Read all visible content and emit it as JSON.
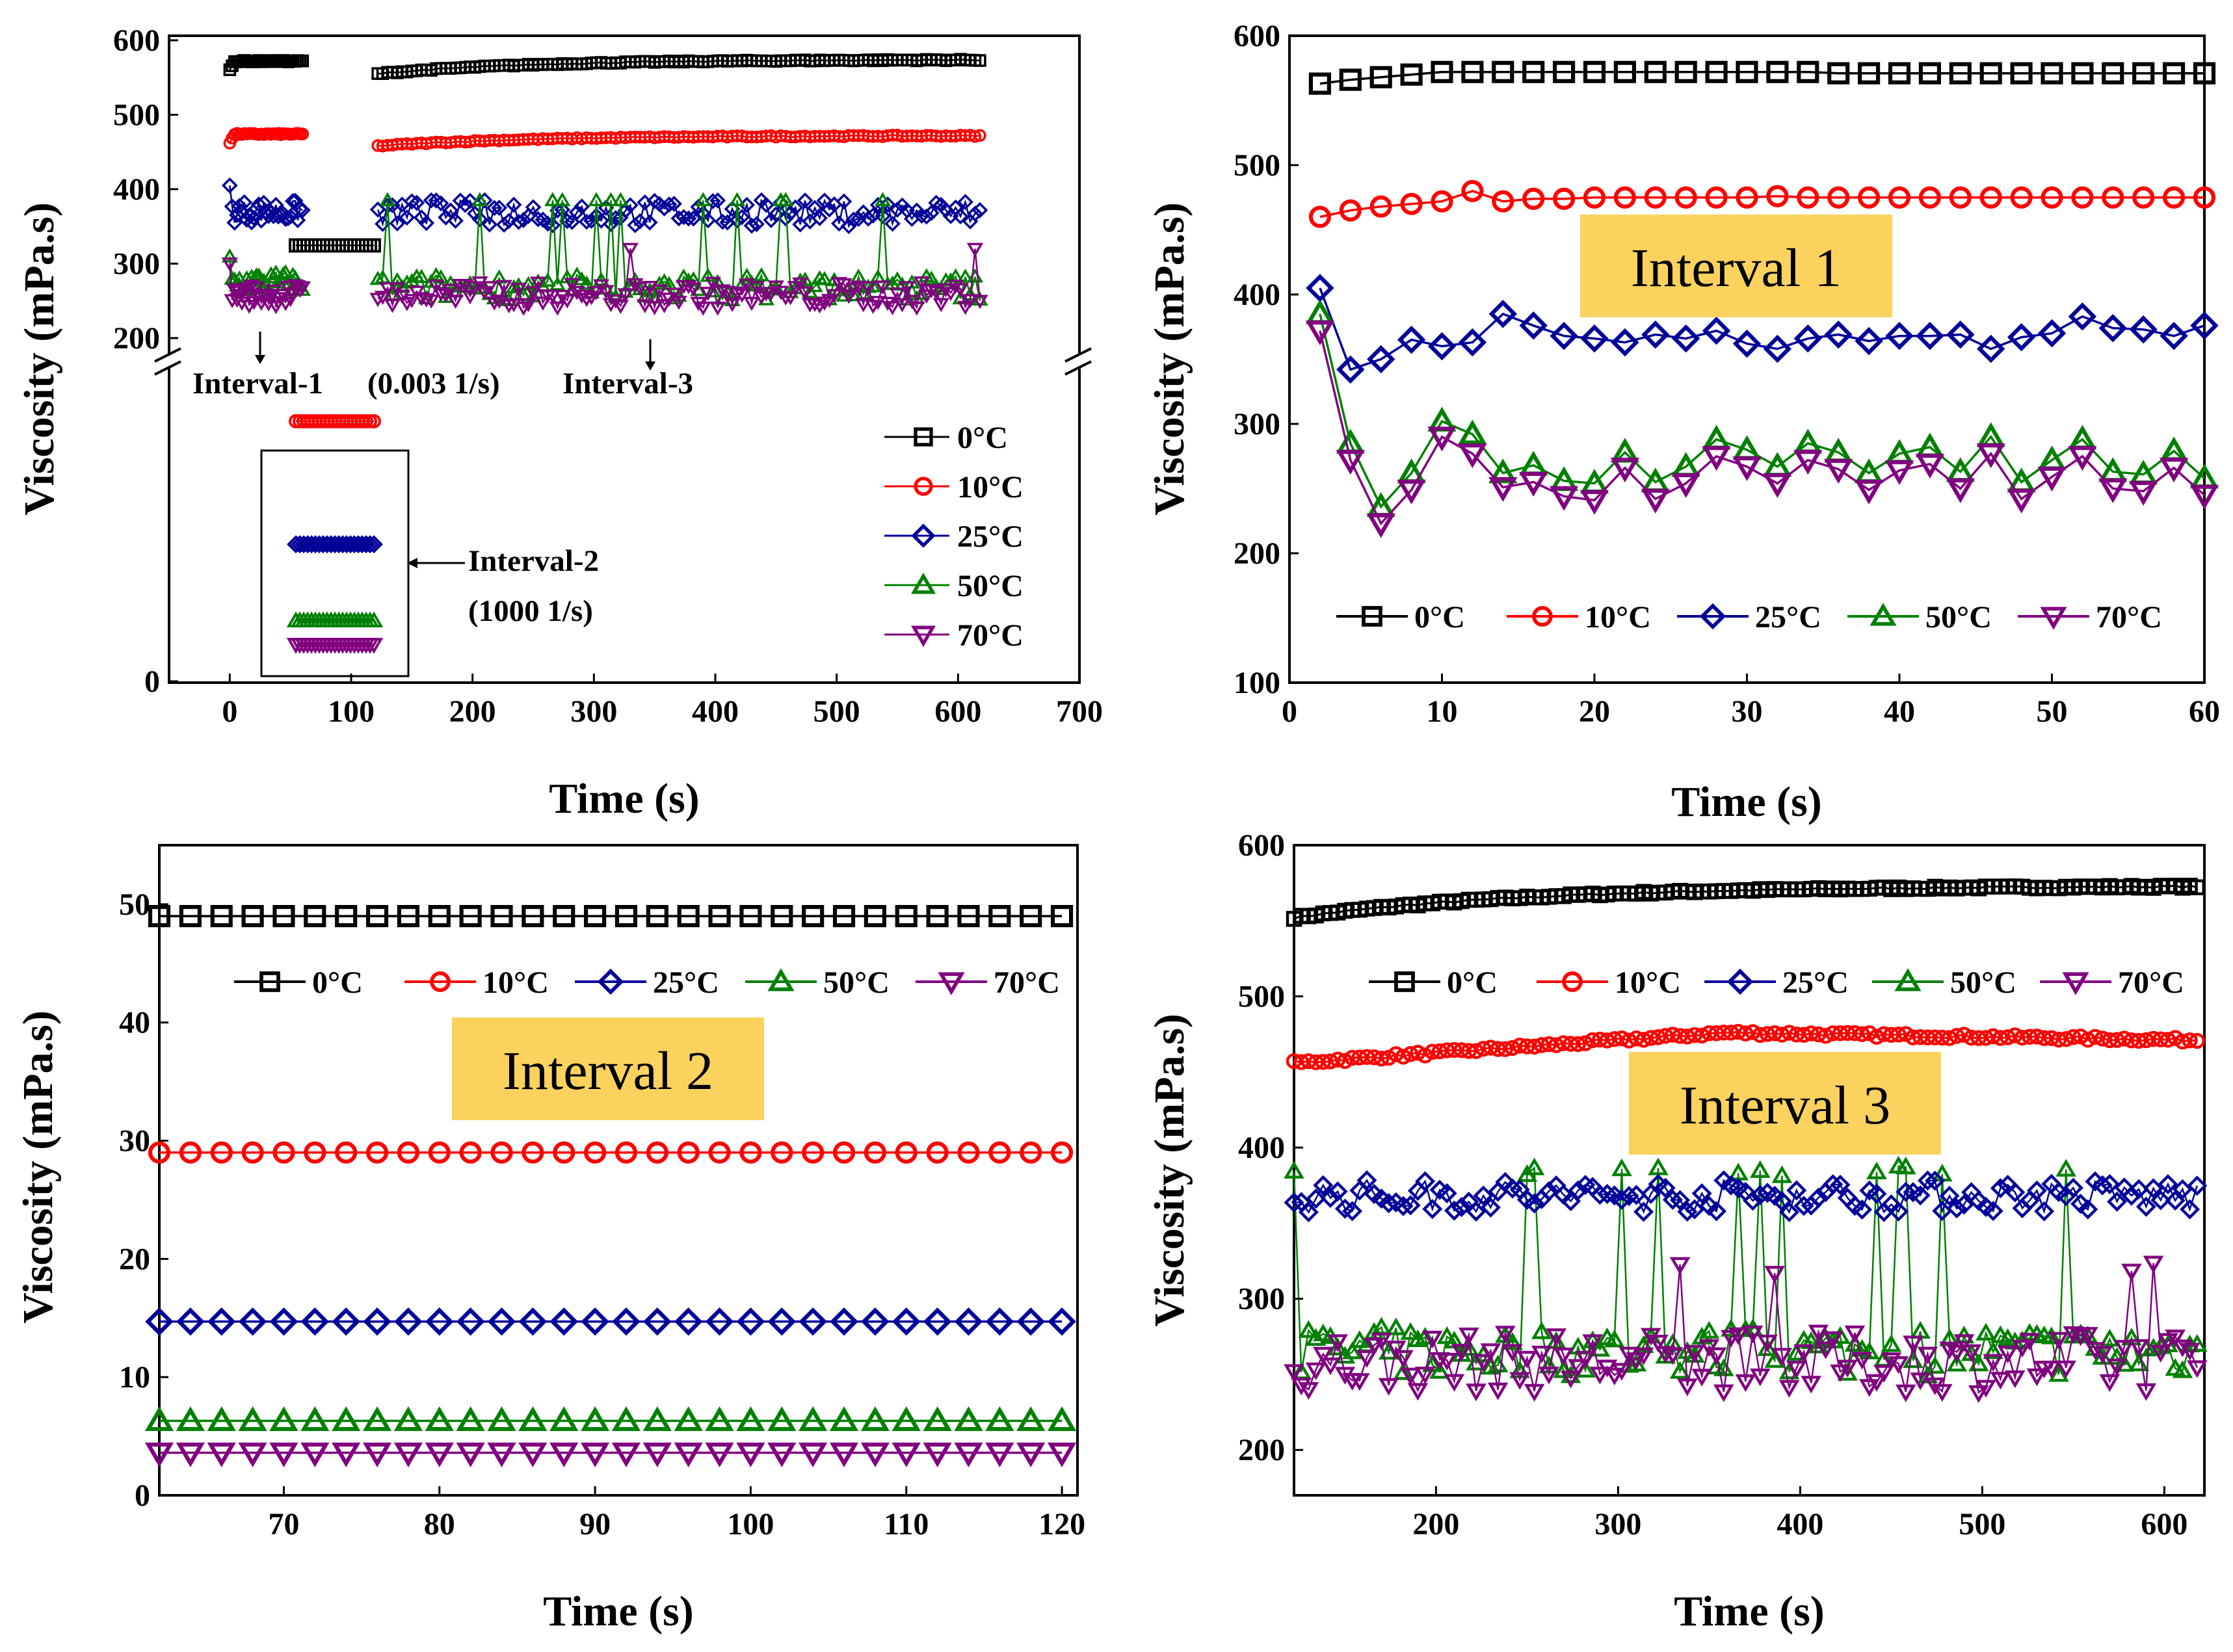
{
  "figure": {
    "series_colors": {
      "0°C": "#000000",
      "10°C": "#ff0000",
      "25°C": "#000099",
      "50°C": "#008000",
      "70°C": "#800080"
    },
    "box_color": "#fcd25e"
  },
  "chart_data": [
    {
      "id": "overview",
      "type": "line",
      "title": "",
      "xlabel": "Time (s)",
      "ylabel": "Viscosity (mPa.s)",
      "xlim": [
        -50,
        700
      ],
      "xticks": [
        "0",
        "100",
        "200",
        "300",
        "400",
        "500",
        "600",
        "700"
      ],
      "yticks_upper": [
        "200",
        "300",
        "400",
        "500",
        "600"
      ],
      "yticks_lower": [
        "0"
      ],
      "ylim_upper": [
        180,
        600
      ],
      "axis_break": "y",
      "legend": [
        "0°C",
        "10°C",
        "25°C",
        "50°C",
        "70°C"
      ],
      "legend_position": "right",
      "annotations": {
        "interval1": "Interval-1",
        "interval1_rate": "(0.003 1/s)",
        "interval3": "Interval-3",
        "interval2": "Interval-2",
        "interval2_rate": "(1000 1/s)"
      },
      "series": [
        {
          "name": "0°C",
          "interval1_mean": 572,
          "interval3_start": 555,
          "interval3_end": 574
        },
        {
          "name": "10°C",
          "interval1_mean": 474,
          "interval3_start": 458,
          "interval3_end": 472
        },
        {
          "name": "25°C",
          "interval1_mean": 370,
          "interval3_mean": 368
        },
        {
          "name": "50°C",
          "interval1_mean": 275,
          "interval3_mean": 268
        },
        {
          "name": "70°C",
          "interval1_mean": 258,
          "interval3_mean": 258
        }
      ],
      "interval2_values": {
        "0°C": 49,
        "10°C": 29,
        "25°C": 15,
        "50°C": 6.3,
        "70°C": 3.6
      },
      "interval_ranges": {
        "interval1": [
          0,
          60
        ],
        "interval2": [
          62,
          120
        ],
        "interval3": [
          122,
          620
        ]
      }
    },
    {
      "id": "interval1",
      "type": "line",
      "title": "Interval 1",
      "xlabel": "Time (s)",
      "ylabel": "Viscosity (mPa.s)",
      "xlim": [
        0,
        60
      ],
      "ylim": [
        100,
        600
      ],
      "xticks": [
        "0",
        "10",
        "20",
        "30",
        "40",
        "50",
        "60"
      ],
      "yticks": [
        "100",
        "200",
        "300",
        "400",
        "500",
        "600"
      ],
      "legend": [
        "0°C",
        "10°C",
        "25°C",
        "50°C",
        "70°C"
      ],
      "legend_position": "lower",
      "x": [
        2,
        4,
        6,
        8,
        10,
        12,
        14,
        16,
        18,
        20,
        22,
        24,
        26,
        28,
        30,
        32,
        34,
        36,
        38,
        40,
        42,
        44,
        46,
        48,
        50,
        52,
        54,
        56,
        58,
        60
      ],
      "series": [
        {
          "name": "0°C",
          "values": [
            563,
            566,
            568,
            570,
            572,
            572,
            572,
            572,
            572,
            572,
            572,
            572,
            572,
            572,
            572,
            572,
            572,
            571,
            571,
            571,
            571,
            571,
            571,
            571,
            571,
            571,
            571,
            571,
            571,
            571
          ]
        },
        {
          "name": "10°C",
          "values": [
            460,
            465,
            468,
            470,
            472,
            480,
            472,
            474,
            474,
            475,
            475,
            475,
            475,
            475,
            475,
            476,
            475,
            475,
            475,
            475,
            475,
            475,
            475,
            475,
            475,
            475,
            475,
            475,
            475,
            475
          ]
        },
        {
          "name": "25°C",
          "values": [
            405,
            342,
            350,
            365,
            360,
            363,
            385,
            376,
            368,
            366,
            363,
            369,
            366,
            372,
            362,
            358,
            366,
            369,
            364,
            368,
            368,
            369,
            358,
            367,
            370,
            383,
            374,
            373,
            368,
            376
          ]
        },
        {
          "name": "50°C",
          "values": [
            385,
            285,
            236,
            262,
            302,
            292,
            262,
            268,
            256,
            254,
            278,
            255,
            267,
            288,
            280,
            267,
            285,
            278,
            262,
            277,
            282,
            263,
            290,
            255,
            272,
            288,
            263,
            261,
            279,
            258
          ]
        },
        {
          "name": "70°C",
          "values": [
            372,
            272,
            223,
            249,
            290,
            277,
            251,
            255,
            244,
            241,
            266,
            242,
            254,
            275,
            267,
            254,
            272,
            265,
            249,
            264,
            269,
            250,
            277,
            242,
            259,
            275,
            250,
            248,
            266,
            245
          ]
        }
      ]
    },
    {
      "id": "interval2",
      "type": "line",
      "title": "Interval 2",
      "xlabel": "Time (s)",
      "ylabel": "Viscosity (mPa.s)",
      "xlim": [
        62,
        121
      ],
      "ylim": [
        0,
        55
      ],
      "xticks": [
        "70",
        "80",
        "90",
        "100",
        "110",
        "120"
      ],
      "yticks": [
        "0",
        "10",
        "20",
        "30",
        "40",
        "50"
      ],
      "legend": [
        "0°C",
        "10°C",
        "25°C",
        "50°C",
        "70°C"
      ],
      "legend_position": "top",
      "x_start": 62,
      "x_end": 120,
      "x_step": 2,
      "series": [
        {
          "name": "0°C",
          "value": 49.0
        },
        {
          "name": "10°C",
          "value": 29.0
        },
        {
          "name": "25°C",
          "value": 14.7
        },
        {
          "name": "50°C",
          "value": 6.3
        },
        {
          "name": "70°C",
          "value": 3.6
        }
      ]
    },
    {
      "id": "interval3",
      "type": "line",
      "title": "Interval 3",
      "xlabel": "Time (s)",
      "ylabel": "Viscosity (mPa.s)",
      "xlim": [
        122,
        622
      ],
      "ylim": [
        170,
        600
      ],
      "xticks": [
        "200",
        "300",
        "400",
        "500",
        "600"
      ],
      "yticks": [
        "200",
        "300",
        "400",
        "500",
        "600"
      ],
      "legend": [
        "0°C",
        "10°C",
        "25°C",
        "50°C",
        "70°C"
      ],
      "legend_position": "top",
      "series": [
        {
          "name": "0°C",
          "start": 552,
          "end": 573,
          "trend": "rising"
        },
        {
          "name": "10°C",
          "start": 456,
          "peak": 476,
          "end": 471,
          "trend": "rising"
        },
        {
          "name": "25°C",
          "mean": 368,
          "spread": [
            345,
            385
          ]
        },
        {
          "name": "50°C",
          "mean": 265,
          "spread": [
            240,
            385
          ]
        },
        {
          "name": "70°C",
          "mean": 258,
          "spread": [
            222,
            320
          ]
        }
      ]
    }
  ]
}
